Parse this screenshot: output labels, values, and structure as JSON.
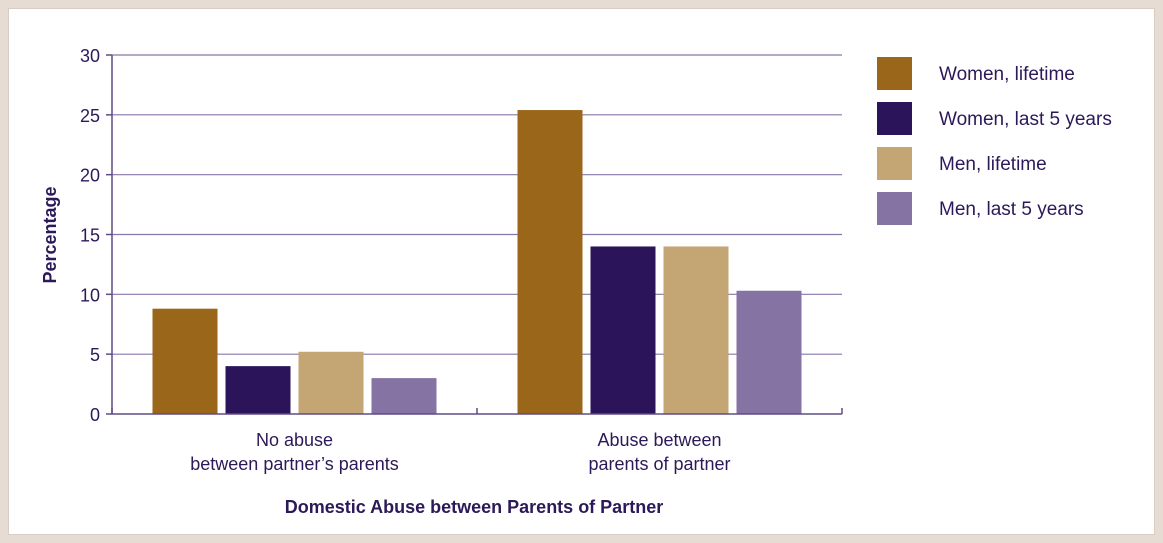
{
  "chart_data": {
    "type": "bar",
    "categories": [
      [
        "No abuse",
        "between partner’s parents"
      ],
      [
        "Abuse between",
        "parents of partner"
      ]
    ],
    "series": [
      {
        "name": "Women, lifetime",
        "color": "#9a6619",
        "values": [
          8.8,
          25.4
        ]
      },
      {
        "name": "Women, last 5 years",
        "color": "#2b1459",
        "values": [
          4.0,
          14.0
        ]
      },
      {
        "name": "Men, lifetime",
        "color": "#c4a574",
        "values": [
          5.2,
          14.0
        ]
      },
      {
        "name": "Men, last 5 years",
        "color": "#8473a3",
        "values": [
          3.0,
          10.3
        ]
      }
    ],
    "xlabel": "Domestic Abuse between Parents of Partner",
    "ylabel": "Percentage",
    "ylim": [
      0,
      30
    ],
    "yticks": [
      0,
      5,
      10,
      15,
      20,
      25,
      30
    ],
    "grid": true,
    "legend_position": "right"
  }
}
